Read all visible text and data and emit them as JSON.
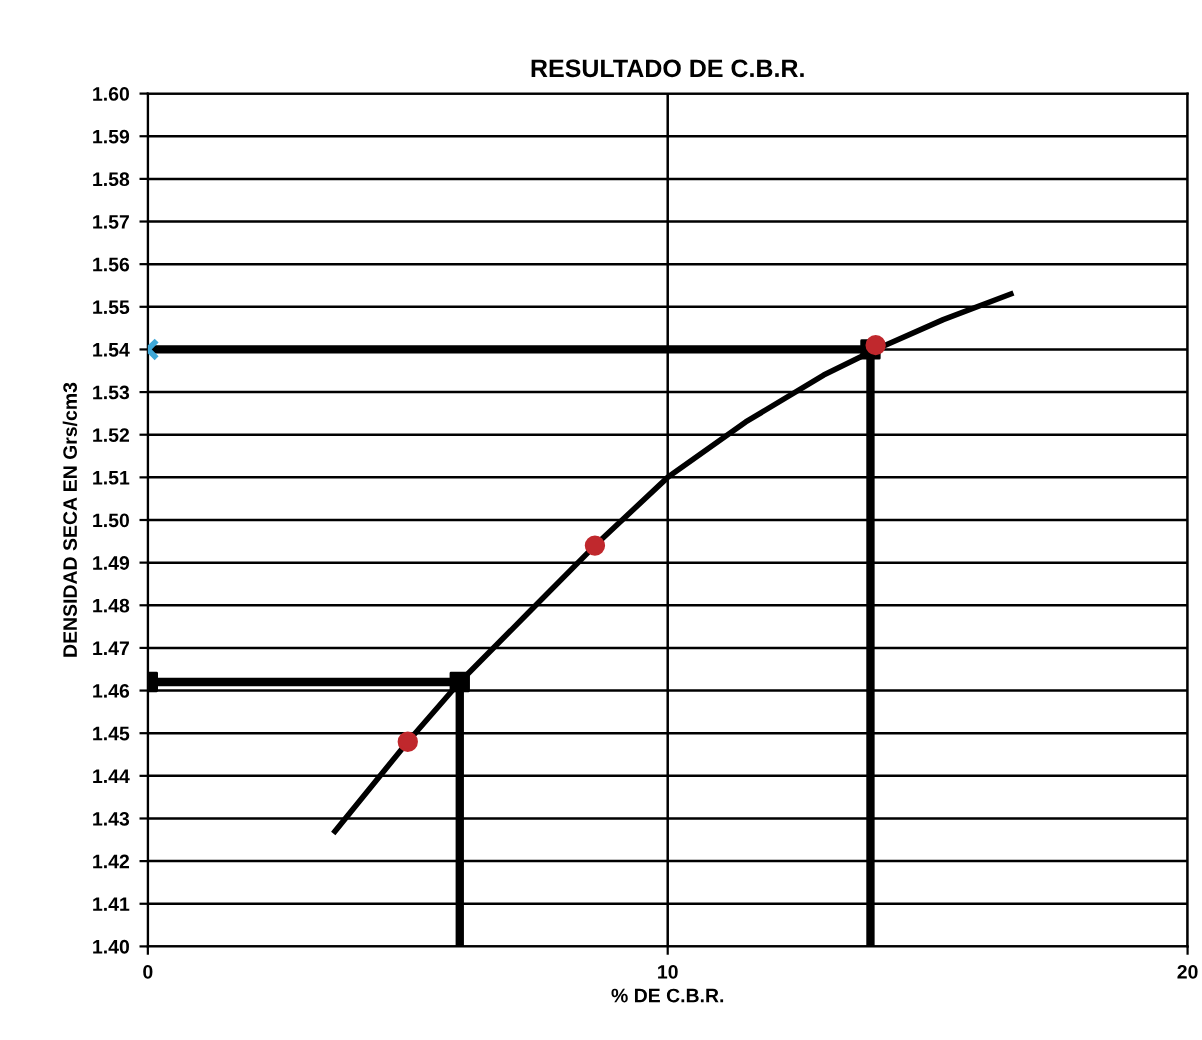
{
  "chart_data": {
    "type": "line",
    "title": "RESULTADO DE C.B.R.",
    "xlabel": "% DE C.B.R.",
    "ylabel": "DENSIDAD SECA EN Grs/cm3",
    "xlim": [
      0,
      20
    ],
    "xticks": [
      0,
      10,
      20
    ],
    "ylim": [
      1.4,
      1.6
    ],
    "yticks": [
      {
        "value": 1.4,
        "label": "1.40"
      },
      1.41,
      1.42,
      1.43,
      1.44,
      1.45,
      1.46,
      1.47,
      1.48,
      1.49,
      {
        "value": 1.5,
        "label": "1.50"
      },
      1.51,
      1.52,
      1.53,
      1.54,
      1.55,
      1.56,
      1.57,
      1.58,
      1.59,
      {
        "value": 1.6,
        "label": "1.60"
      }
    ],
    "grid": true,
    "legend": false,
    "series": [
      {
        "color": "#000000",
        "marker": "none",
        "x": [
          3.6,
          5.0,
          6.0,
          7.3,
          8.6,
          10.0,
          11.5,
          13.0,
          14.0,
          15.3,
          16.6
        ],
        "values": [
          1.427,
          1.448,
          1.462,
          1.478,
          1.494,
          1.51,
          1.523,
          1.534,
          1.54,
          1.547,
          1.553
        ]
      },
      {
        "color": "#000000",
        "marker": "none",
        "x": [
          0,
          13.9,
          13.9
        ],
        "values": [
          1.54,
          1.54,
          1.4
        ]
      },
      {
        "color": "#000000",
        "marker": "none",
        "x": [
          0,
          6.0,
          6.0
        ],
        "values": [
          1.462,
          1.462,
          1.4
        ]
      },
      {
        "type": "scatter",
        "color": "#000000",
        "marker": "square",
        "x": [
          0,
          6.0,
          13.9
        ],
        "values": [
          1.462,
          1.462,
          1.54
        ]
      },
      {
        "type": "scatter",
        "color": "#c0282d",
        "marker": "circle",
        "x": [
          5.0,
          8.6,
          14.0
        ],
        "values": [
          1.448,
          1.494,
          1.541
        ]
      },
      {
        "type": "scatter",
        "color": "#3fa8d8",
        "marker": "cross",
        "x": [
          0
        ],
        "values": [
          1.54
        ]
      }
    ]
  }
}
